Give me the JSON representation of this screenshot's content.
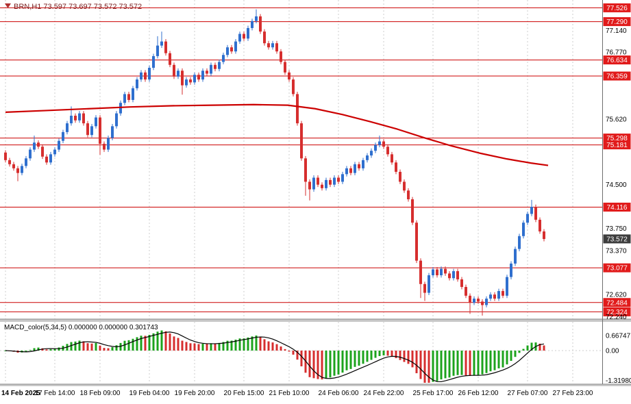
{
  "header": {
    "icon": "symbol-flag-icon",
    "text": "BRN,H1 73.597 73.697 73.572 73.572"
  },
  "macd_panel": {
    "header_text": "MACD_color(5,34,5) 0.000000 0.000000 0.301743",
    "axis_labels": [
      {
        "text": "0.66747",
        "value": 0.66747
      },
      {
        "text": "0.00",
        "value": 0
      },
      {
        "text": "-1.31980",
        "value": -1.3198
      }
    ]
  },
  "price_axis": {
    "ticks": [
      {
        "text": "77.140",
        "value": 77.14
      },
      {
        "text": "76.770",
        "value": 76.77
      },
      {
        "text": "75.620",
        "value": 75.62
      },
      {
        "text": "74.500",
        "value": 74.5
      },
      {
        "text": "73.750",
        "value": 73.75
      },
      {
        "text": "73.370",
        "value": 73.37
      },
      {
        "text": "72.620",
        "value": 72.62
      },
      {
        "text": "72.240",
        "value": 72.24
      }
    ],
    "level_labels": [
      {
        "text": "77.526",
        "value": 77.526
      },
      {
        "text": "77.290",
        "value": 77.29
      },
      {
        "text": "76.634",
        "value": 76.634
      },
      {
        "text": "76.359",
        "value": 76.359
      },
      {
        "text": "75.298",
        "value": 75.298
      },
      {
        "text": "75.181",
        "value": 75.181
      },
      {
        "text": "74.116",
        "value": 74.116
      },
      {
        "text": "73.077",
        "value": 73.077
      },
      {
        "text": "72.484",
        "value": 72.484
      },
      {
        "text": "72.324",
        "value": 72.324
      }
    ],
    "current_price": {
      "text": "73.572",
      "value": 73.572
    }
  },
  "time_axis": {
    "labels": [
      {
        "text": "14 Feb 2025",
        "slot": 0,
        "bold": true
      },
      {
        "text": "17 Feb 14:00",
        "slot": 12
      },
      {
        "text": "18 Feb 09:00",
        "slot": 23
      },
      {
        "text": "19 Feb 04:00",
        "slot": 35
      },
      {
        "text": "19 Feb 20:00",
        "slot": 46
      },
      {
        "text": "20 Feb 15:00",
        "slot": 58
      },
      {
        "text": "21 Feb 10:00",
        "slot": 69
      },
      {
        "text": "24 Feb 06:00",
        "slot": 81
      },
      {
        "text": "24 Feb 22:00",
        "slot": 92
      },
      {
        "text": "25 Feb 17:00",
        "slot": 104
      },
      {
        "text": "26 Feb 12:00",
        "slot": 115
      },
      {
        "text": "27 Feb 07:00",
        "slot": 127
      },
      {
        "text": "27 Feb 23:00",
        "slot": 138
      }
    ]
  },
  "chart_data": [
    {
      "type": "candlestick",
      "symbol": "BRN",
      "timeframe": "H1",
      "ylim": [
        72.2,
        77.66
      ],
      "first_open": 75.05,
      "closes": [
        74.92,
        74.85,
        74.78,
        74.7,
        74.82,
        74.95,
        75.1,
        75.22,
        75.15,
        74.98,
        74.88,
        75.02,
        75.1,
        75.25,
        75.4,
        75.55,
        75.68,
        75.6,
        75.72,
        75.55,
        75.35,
        75.5,
        75.65,
        75.2,
        75.1,
        75.3,
        75.5,
        75.72,
        75.9,
        76.05,
        75.95,
        76.15,
        76.3,
        76.42,
        76.3,
        76.5,
        76.7,
        76.88,
        76.95,
        76.75,
        76.55,
        76.35,
        76.45,
        76.2,
        76.3,
        76.25,
        76.38,
        76.3,
        76.45,
        76.4,
        76.55,
        76.48,
        76.6,
        76.72,
        76.85,
        76.78,
        76.95,
        77.08,
        77.0,
        77.18,
        77.3,
        77.38,
        77.12,
        76.92,
        76.85,
        76.92,
        76.78,
        76.6,
        76.42,
        76.3,
        76.05,
        75.55,
        74.95,
        74.55,
        74.42,
        74.62,
        74.5,
        74.44,
        74.58,
        74.5,
        74.62,
        74.55,
        74.68,
        74.78,
        74.7,
        74.85,
        74.78,
        74.92,
        75.0,
        75.08,
        75.18,
        75.24,
        75.15,
        75.02,
        74.88,
        74.72,
        74.55,
        74.4,
        74.25,
        73.85,
        73.2,
        72.8,
        72.65,
        72.95,
        73.05,
        72.95,
        73.06,
        72.98,
        72.9,
        73.02,
        72.88,
        72.75,
        72.6,
        72.48,
        72.55,
        72.5,
        72.44,
        72.55,
        72.62,
        72.55,
        72.68,
        72.6,
        72.92,
        73.15,
        73.4,
        73.62,
        73.85,
        74.0,
        74.12,
        73.9,
        73.7,
        73.57
      ],
      "default_wick": 0.04,
      "wick_overrides": {
        "3": [
          0.1,
          0
        ],
        "7": [
          0,
          0.08
        ],
        "16": [
          0,
          0.12
        ],
        "23": [
          0.15,
          0
        ],
        "37": [
          0,
          0.12
        ],
        "38": [
          0,
          0.13
        ],
        "43": [
          0.12,
          0
        ],
        "61": [
          0,
          0.08
        ],
        "73": [
          0.2,
          0
        ],
        "74": [
          0.15,
          0
        ],
        "91": [
          0,
          0.06
        ],
        "101": [
          0.2,
          0
        ],
        "102": [
          0.1,
          0
        ],
        "113": [
          0.15,
          0
        ],
        "116": [
          0.14,
          0
        ],
        "128": [
          0,
          0.08
        ]
      },
      "levels": [
        77.526,
        77.29,
        76.634,
        76.359,
        75.298,
        75.181,
        74.116,
        73.077,
        72.484,
        72.324
      ],
      "ma_points": [
        [
          8,
          75.74
        ],
        [
          70,
          75.77
        ],
        [
          130,
          75.8
        ],
        [
          190,
          75.83
        ],
        [
          250,
          75.85
        ],
        [
          310,
          75.86
        ],
        [
          370,
          75.87
        ],
        [
          420,
          75.86
        ],
        [
          460,
          75.8
        ],
        [
          500,
          75.7
        ],
        [
          540,
          75.58
        ],
        [
          580,
          75.45
        ],
        [
          620,
          75.3
        ],
        [
          660,
          75.16
        ],
        [
          700,
          75.04
        ],
        [
          740,
          74.94
        ],
        [
          775,
          74.87
        ],
        [
          800,
          74.83
        ]
      ],
      "last_price": 73.572
    },
    {
      "type": "bar",
      "name": "MACD_color",
      "params": {
        "fast": 5,
        "slow": 34,
        "signal": 5
      },
      "derived_from": "chart_data[0].closes",
      "axis_range": [
        -1.3198,
        0.66747
      ]
    }
  ],
  "colors": {
    "bull": "#2f6fce",
    "bear": "#d62e2e",
    "level_line": "#cc0000",
    "ma_line": "#cc0000",
    "grid": "#cdcdcd",
    "macd_up": "#1ca31c",
    "macd_down": "#d62e2e",
    "macd_signal": "#000000",
    "label_box": "#e11b1b",
    "current_box": "#3d3d3d",
    "axis_text": "#000000",
    "header_text": "#7b1d1d",
    "separator_fill": "#c8c8c8",
    "separator_edge": "#8a8a8a",
    "axis_line": "#6e6e6e"
  }
}
